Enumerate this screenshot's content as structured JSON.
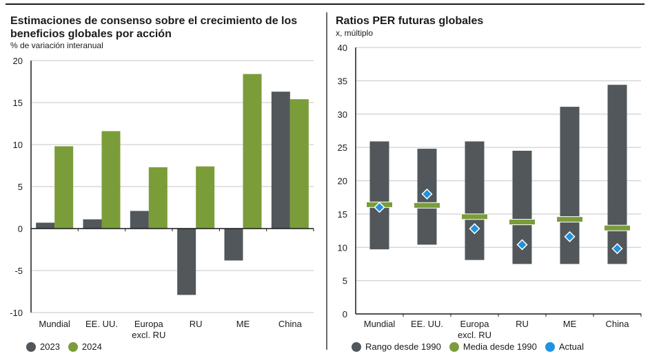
{
  "colors": {
    "dark_gray": "#51575a",
    "green": "#7a9d3a",
    "blue": "#1f93de",
    "grid": "#d0d0d0",
    "axis": "#1a1a1a"
  },
  "chart_data": [
    {
      "type": "bar",
      "title": "Estimaciones de consenso sobre el crecimiento de los beneficios globales por acción",
      "title_line1": "Estimaciones de consenso sobre el crecimiento de los",
      "title_line2": "beneficios globales por acción",
      "subtitle": "% de variación interanual",
      "xlabel": "",
      "ylabel": "% de variación interanual",
      "ylim": [
        -10,
        20
      ],
      "yticks": [
        -10,
        -5,
        0,
        5,
        10,
        15,
        20
      ],
      "ytick_labels": [
        "-10",
        "-5",
        "0",
        "5",
        "10",
        "15",
        "20"
      ],
      "grid": true,
      "categories": [
        "Mundial",
        "EE. UU.",
        "Europa excl. RU",
        "RU",
        "ME",
        "China"
      ],
      "category_lines": [
        [
          "Mundial"
        ],
        [
          "EE. UU."
        ],
        [
          "Europa",
          "excl. RU"
        ],
        [
          "RU"
        ],
        [
          "ME"
        ],
        [
          "China"
        ]
      ],
      "series": [
        {
          "name": "2023",
          "color": "#51575a",
          "values": [
            0.7,
            1.1,
            2.1,
            -7.9,
            -3.8,
            16.3
          ]
        },
        {
          "name": "2024",
          "color": "#7a9d3a",
          "values": [
            9.8,
            11.6,
            7.3,
            7.4,
            18.4,
            15.4
          ]
        }
      ],
      "legend": {
        "placement": "bottom-left",
        "items": [
          {
            "label": "2023",
            "color": "#51575a"
          },
          {
            "label": "2024",
            "color": "#7a9d3a"
          }
        ]
      }
    },
    {
      "type": "range-bar",
      "title": "Ratios PER futuras globales",
      "subtitle": "x, múltiplo",
      "xlabel": "",
      "ylabel": "x, múltiplo",
      "ylim": [
        0,
        40
      ],
      "yticks": [
        0,
        5,
        10,
        15,
        20,
        25,
        30,
        35,
        40
      ],
      "ytick_labels": [
        "0",
        "5",
        "10",
        "15",
        "20",
        "25",
        "30",
        "35",
        "40"
      ],
      "grid": true,
      "categories": [
        "Mundial",
        "EE. UU.",
        "Europa excl. RU",
        "RU",
        "ME",
        "China"
      ],
      "category_lines": [
        [
          "Mundial"
        ],
        [
          "EE. UU."
        ],
        [
          "Europa",
          "excl. RU"
        ],
        [
          "RU"
        ],
        [
          "ME"
        ],
        [
          "China"
        ]
      ],
      "series": [
        {
          "name": "Rango desde 1990",
          "color": "#51575a",
          "low": [
            9.7,
            10.4,
            8.1,
            7.5,
            7.5,
            7.5
          ],
          "high": [
            25.9,
            24.8,
            25.9,
            24.5,
            31.1,
            34.4
          ]
        },
        {
          "name": "Media desde 1990",
          "color": "#7a9d3a",
          "values": [
            16.4,
            16.3,
            14.6,
            13.8,
            14.2,
            12.9
          ]
        },
        {
          "name": "Actual",
          "color": "#1f93de",
          "values": [
            16.0,
            18.0,
            12.8,
            10.4,
            11.6,
            9.8
          ]
        }
      ],
      "legend": {
        "placement": "bottom-left",
        "items": [
          {
            "label": "Rango desde 1990",
            "color": "#51575a"
          },
          {
            "label": "Media desde 1990",
            "color": "#7a9d3a"
          },
          {
            "label": "Actual",
            "color": "#1f93de"
          }
        ]
      }
    }
  ]
}
